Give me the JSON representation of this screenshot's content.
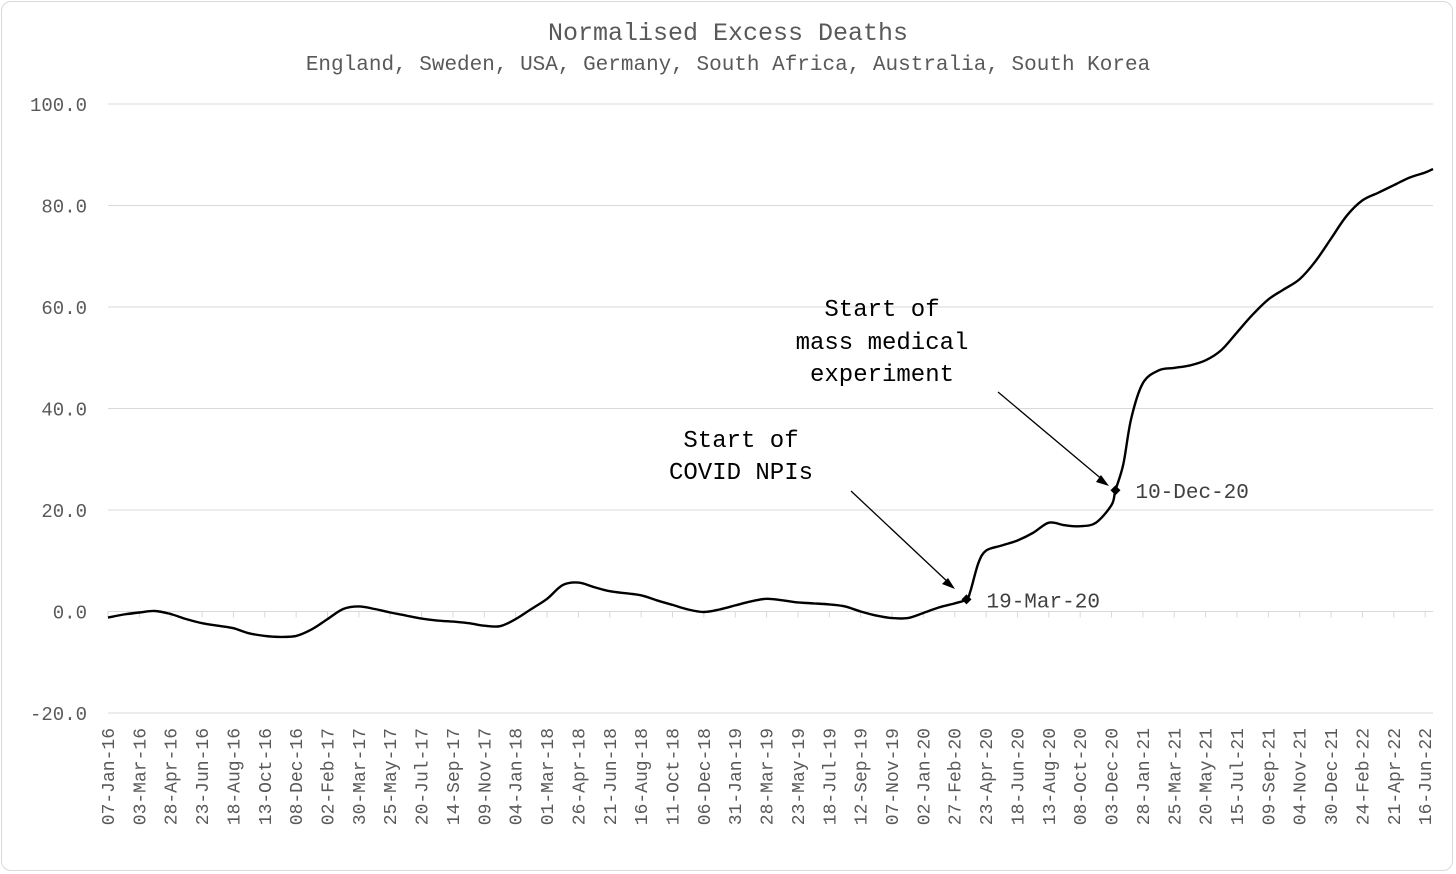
{
  "chart_data": {
    "type": "line",
    "title": "Normalised Excess Deaths",
    "subtitle": "England, Sweden, USA, Germany, South Africa, Australia, South Korea",
    "xlabel": "",
    "ylabel": "",
    "ylim": [
      -20,
      100
    ],
    "yticks": [
      "-20.0",
      "0.0",
      "20.0",
      "40.0",
      "60.0",
      "80.0",
      "100.0"
    ],
    "ytick_values": [
      -20,
      0,
      20,
      40,
      60,
      80,
      100
    ],
    "grid": true,
    "legend": "none",
    "xrange": [
      "2016-01-07",
      "2022-06-30"
    ],
    "x_tick_labels": [
      "07-Jan-16",
      "03-Mar-16",
      "28-Apr-16",
      "23-Jun-16",
      "18-Aug-16",
      "13-Oct-16",
      "08-Dec-16",
      "02-Feb-17",
      "30-Mar-17",
      "25-May-17",
      "20-Jul-17",
      "14-Sep-17",
      "09-Nov-17",
      "04-Jan-18",
      "01-Mar-18",
      "26-Apr-18",
      "21-Jun-18",
      "16-Aug-18",
      "11-Oct-18",
      "06-Dec-18",
      "31-Jan-19",
      "28-Mar-19",
      "23-May-19",
      "18-Jul-19",
      "12-Sep-19",
      "07-Nov-19",
      "02-Jan-20",
      "27-Feb-20",
      "23-Apr-20",
      "18-Jun-20",
      "13-Aug-20",
      "08-Oct-20",
      "03-Dec-20",
      "28-Jan-21",
      "25-Mar-21",
      "20-May-21",
      "15-Jul-21",
      "09-Sep-21",
      "04-Nov-21",
      "30-Dec-21",
      "24-Feb-22",
      "21-Apr-22",
      "16-Jun-22"
    ],
    "x_tick_dates": [
      "2016-01-07",
      "2016-03-03",
      "2016-04-28",
      "2016-06-23",
      "2016-08-18",
      "2016-10-13",
      "2016-12-08",
      "2017-02-02",
      "2017-03-30",
      "2017-05-25",
      "2017-07-20",
      "2017-09-14",
      "2017-11-09",
      "2018-01-04",
      "2018-03-01",
      "2018-04-26",
      "2018-06-21",
      "2018-08-16",
      "2018-10-11",
      "2018-12-06",
      "2019-01-31",
      "2019-03-28",
      "2019-05-23",
      "2019-07-18",
      "2019-09-12",
      "2019-11-07",
      "2020-01-02",
      "2020-02-27",
      "2020-04-23",
      "2020-06-18",
      "2020-08-13",
      "2020-10-08",
      "2020-12-03",
      "2021-01-28",
      "2021-03-25",
      "2021-05-20",
      "2021-07-15",
      "2021-09-09",
      "2021-11-04",
      "2021-12-30",
      "2022-02-24",
      "2022-04-21",
      "2022-06-16"
    ],
    "series": [
      {
        "color": "#000000",
        "x": [
          "2016-01-07",
          "2016-02-04",
          "2016-03-03",
          "2016-03-31",
          "2016-04-28",
          "2016-05-26",
          "2016-06-23",
          "2016-07-21",
          "2016-08-18",
          "2016-09-15",
          "2016-10-13",
          "2016-11-10",
          "2016-12-08",
          "2017-01-05",
          "2017-02-02",
          "2017-03-02",
          "2017-03-30",
          "2017-04-27",
          "2017-05-25",
          "2017-06-22",
          "2017-07-20",
          "2017-08-17",
          "2017-09-14",
          "2017-10-12",
          "2017-11-09",
          "2017-12-07",
          "2018-01-04",
          "2018-02-01",
          "2018-03-01",
          "2018-03-29",
          "2018-04-26",
          "2018-05-24",
          "2018-06-21",
          "2018-07-19",
          "2018-08-16",
          "2018-09-13",
          "2018-10-11",
          "2018-11-08",
          "2018-12-06",
          "2019-01-03",
          "2019-01-31",
          "2019-02-28",
          "2019-03-28",
          "2019-04-25",
          "2019-05-23",
          "2019-06-20",
          "2019-07-18",
          "2019-08-15",
          "2019-09-12",
          "2019-10-10",
          "2019-11-07",
          "2019-12-05",
          "2020-01-02",
          "2020-01-30",
          "2020-02-27",
          "2020-03-19",
          "2020-03-26",
          "2020-04-09",
          "2020-04-23",
          "2020-05-21",
          "2020-06-18",
          "2020-07-16",
          "2020-08-13",
          "2020-09-10",
          "2020-10-08",
          "2020-11-05",
          "2020-12-03",
          "2020-12-10",
          "2020-12-24",
          "2021-01-07",
          "2021-01-28",
          "2021-02-25",
          "2021-03-25",
          "2021-04-22",
          "2021-05-20",
          "2021-06-17",
          "2021-07-15",
          "2021-08-12",
          "2021-09-09",
          "2021-10-07",
          "2021-11-04",
          "2021-12-02",
          "2021-12-30",
          "2022-01-27",
          "2022-02-24",
          "2022-03-24",
          "2022-04-21",
          "2022-05-19",
          "2022-06-16",
          "2022-06-30"
        ],
        "values": [
          -1.2,
          -0.6,
          -0.2,
          0.1,
          -0.5,
          -1.5,
          -2.3,
          -2.8,
          -3.3,
          -4.3,
          -4.8,
          -5.0,
          -4.8,
          -3.5,
          -1.5,
          0.5,
          1.0,
          0.5,
          -0.2,
          -0.8,
          -1.4,
          -1.8,
          -2.0,
          -2.3,
          -2.8,
          -2.9,
          -1.5,
          0.5,
          2.5,
          5.2,
          5.7,
          4.8,
          4.0,
          3.6,
          3.2,
          2.2,
          1.3,
          0.4,
          -0.1,
          0.4,
          1.2,
          2.0,
          2.5,
          2.2,
          1.8,
          1.6,
          1.4,
          1.0,
          0.0,
          -0.8,
          -1.3,
          -1.3,
          -0.3,
          0.8,
          1.6,
          2.4,
          4.0,
          9.5,
          12.0,
          13.0,
          14.0,
          15.5,
          17.5,
          17.0,
          16.8,
          17.5,
          21.0,
          23.9,
          29.0,
          38.0,
          45.0,
          47.5,
          48.0,
          48.5,
          49.5,
          51.5,
          55.0,
          58.5,
          61.5,
          63.5,
          65.5,
          69.0,
          73.5,
          78.0,
          81.0,
          82.5,
          84.0,
          85.5,
          86.5,
          87.2
        ]
      }
    ],
    "markers": [
      {
        "x": "2020-03-19",
        "y": 2.4,
        "label": "19-Mar-20"
      },
      {
        "x": "2020-12-10",
        "y": 23.9,
        "label": "10-Dec-20"
      }
    ],
    "annotations": [
      {
        "lines": [
          "Start of",
          "COVID NPIs"
        ],
        "points_to": "2020-03-19"
      },
      {
        "lines": [
          "Start of",
          "mass medical",
          "experiment"
        ],
        "points_to": "2020-12-10"
      }
    ]
  }
}
